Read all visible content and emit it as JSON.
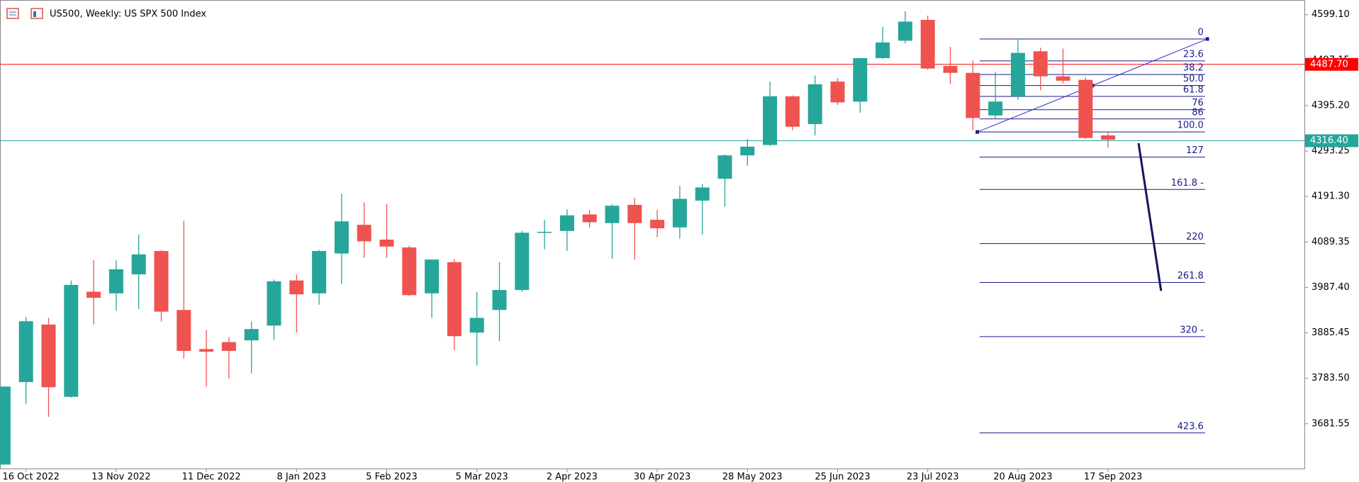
{
  "chart_data": {
    "type": "candlestick",
    "title": "US500, Weekly:  US SPX 500 Index",
    "categories": [
      null,
      "16 Oct 2022",
      null,
      null,
      null,
      "13 Nov 2022",
      null,
      null,
      null,
      "11 Dec 2022",
      null,
      null,
      null,
      "8 Jan 2023",
      null,
      null,
      null,
      "5 Feb 2023",
      null,
      null,
      null,
      "5 Mar 2023",
      null,
      null,
      null,
      "2 Apr 2023",
      null,
      null,
      null,
      "30 Apr 2023",
      null,
      null,
      null,
      "28 May 2023",
      null,
      null,
      null,
      "25 Jun 2023",
      null,
      null,
      null,
      "23 Jul 2023",
      null,
      null,
      null,
      "20 Aug 2023",
      null,
      null,
      null,
      "17 Sep 2023"
    ],
    "open": [
      3590,
      3775,
      3904,
      3742,
      3977.7,
      3974,
      4016.6,
      4069,
      3936.8,
      3849,
      3864.7,
      3868.6,
      3901.7,
      4003,
      3974,
      4063.4,
      4127.7,
      4094.6,
      4077,
      3974,
      4044,
      3886,
      3936.8,
      3981.6,
      4110,
      4114,
      4151,
      4131.6,
      4172.5,
      4139,
      4122,
      4182,
      4231,
      4283.5,
      4306.9,
      4416,
      4353.6,
      4449,
      4404,
      4501.7,
      4540.7,
      4587.4,
      4484,
      4468.6,
      4373,
      4416,
      4517,
      4460.8,
      4453,
      4328.3
    ],
    "high": [
      3765,
      3921,
      3919,
      4003,
      4048,
      4048,
      4106,
      4071,
      4137,
      3892,
      3876,
      3911,
      4005,
      4016.6,
      4071,
      4197.8,
      4178,
      4174.4,
      4081,
      4050,
      4050,
      3977.7,
      4044,
      4114,
      4139,
      4162.8,
      4161,
      4174,
      4188,
      4161,
      4215,
      4219,
      4285.5,
      4320.5,
      4449,
      4418,
      4462.7,
      4456.9,
      4501.7,
      4571.8,
      4606.9,
      4597,
      4527,
      4495.9,
      4470.5,
      4542.6,
      4525,
      4523,
      4458.8,
      4338
    ],
    "low": [
      3590,
      3726,
      3697,
      3740,
      3904,
      3935,
      3939,
      3911,
      3827.7,
      3765,
      3783,
      3794.6,
      3870,
      3886,
      3948.5,
      3995.2,
      4053.7,
      4053.7,
      3968,
      3919,
      3847,
      3812,
      3866.7,
      3977.7,
      4073,
      4069,
      4122,
      4051.7,
      4049.8,
      4100.4,
      4096.5,
      4106,
      4168.6,
      4260,
      4305,
      4340,
      4328,
      4396.5,
      4379,
      4499.8,
      4534.8,
      4476,
      4443.3,
      4340,
      4365,
      4408.2,
      4429.6,
      4445,
      4320.5,
      4301
    ],
    "close": [
      3765,
      3911.5,
      3763.5,
      3993,
      3964,
      4028,
      4061.5,
      3933,
      3845,
      3843,
      3845,
      3894,
      4001,
      3971.8,
      4069,
      4135.5,
      4090.7,
      4079,
      3970,
      4049.8,
      3878,
      3919,
      3981.6,
      4110,
      4112,
      4149,
      4133.5,
      4170.5,
      4131.6,
      4120,
      4186,
      4211.5,
      4283.5,
      4303,
      4416,
      4347.8,
      4443,
      4402.4,
      4501.7,
      4536.8,
      4583.5,
      4478.3,
      4468.6,
      4367.3,
      4404.3,
      4513.4,
      4460.8,
      4451,
      4322.5,
      4318.6
    ],
    "up_color": "#26a69a",
    "down_color": "#ef5350",
    "ylim": [
      3579.5,
      4632
    ],
    "yticks": [
      {
        "value": 4599.1,
        "label": "4599.10"
      },
      4497.15,
      {
        "value": 4395.2,
        "label": "4395.20"
      },
      4293.25,
      {
        "value": 4191.3,
        "label": "4191.30"
      },
      4089.35,
      {
        "value": 3987.4,
        "label": "3987.40"
      },
      3885.45,
      {
        "value": 3783.5,
        "label": "3783.50"
      },
      3681.55
    ],
    "hlines": [
      {
        "value": 4487.7,
        "label": "4487.70",
        "color": "#ff0000"
      },
      {
        "value": 4316.4,
        "label": "4316.40",
        "color": "#26a69a"
      }
    ],
    "fibonacci": {
      "color": "#1a1a8c",
      "high": 4544.6,
      "low": 4336,
      "start_index": 43.3,
      "end_index": 53.3,
      "levels": [
        {
          "value": 0,
          "label": "0"
        },
        {
          "value": 23.6,
          "label": "23.6"
        },
        {
          "value": 38.2,
          "label": "38.2"
        },
        {
          "value": 50,
          "label": "50.0"
        },
        {
          "value": 61.8,
          "label": "61.8"
        },
        {
          "value": 76,
          "label": "76"
        },
        {
          "value": 86,
          "label": "86"
        },
        {
          "value": 100,
          "label": "100.0"
        },
        {
          "value": 127,
          "label": "127"
        },
        {
          "value": 161.8,
          "label": "161.8 -"
        },
        {
          "value": 220,
          "label": "220"
        },
        {
          "value": 261.8,
          "label": "261.8"
        },
        {
          "value": 320,
          "label": "320 -"
        },
        {
          "value": 423.6,
          "label": "423.6"
        }
      ]
    },
    "lines": [
      {
        "color": "#3333cc",
        "width": 1,
        "index": [
          43.2,
          48.3,
          53.4
        ],
        "price": [
          4336,
          4440,
          4544.6
        ]
      },
      {
        "color": "#14145a",
        "width": 3,
        "index": [
          50.35,
          51.35
        ],
        "price": [
          4310.8,
          3979.6
        ]
      }
    ]
  }
}
